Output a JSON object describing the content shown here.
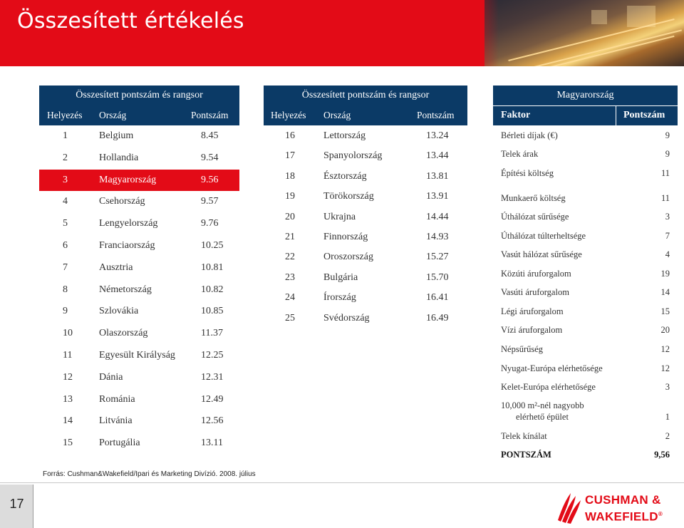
{
  "title": "Összesített értékelés",
  "left_table": {
    "header": "Összesített pontszám és rangsor",
    "col_rank": "Helyezés",
    "col_country": "Ország",
    "col_score": "Pontszám",
    "rows": [
      {
        "rank": "1",
        "country": "Belgium",
        "score": "8.45"
      },
      {
        "rank": "2",
        "country": "Hollandia",
        "score": "9.54"
      },
      {
        "rank": "3",
        "country": "Magyarország",
        "score": "9.56"
      },
      {
        "rank": "4",
        "country": "Csehország",
        "score": "9.57"
      },
      {
        "rank": "5",
        "country": "Lengyelország",
        "score": "9.76"
      },
      {
        "rank": "6",
        "country": "Franciaország",
        "score": "10.25"
      },
      {
        "rank": "7",
        "country": "Ausztria",
        "score": "10.81"
      },
      {
        "rank": "8",
        "country": "Németország",
        "score": "10.82"
      },
      {
        "rank": "9",
        "country": "Szlovákia",
        "score": "10.85"
      },
      {
        "rank": "10",
        "country": "Olaszország",
        "score": "11.37"
      },
      {
        "rank": "11",
        "country": "Egyesült Királyság",
        "score": "12.25"
      },
      {
        "rank": "12",
        "country": "Dánia",
        "score": "12.31"
      },
      {
        "rank": "13",
        "country": "Románia",
        "score": "12.49"
      },
      {
        "rank": "14",
        "country": "Litvánia",
        "score": "12.56"
      },
      {
        "rank": "15",
        "country": "Portugália",
        "score": "13.11"
      }
    ],
    "highlight_color": "#e30b17"
  },
  "middle_table": {
    "header": "Összesített pontszám és rangsor",
    "col_rank": "Helyezés",
    "col_country": "Ország",
    "col_score": "Pontszám",
    "rows": [
      {
        "rank": "16",
        "country": "Lettország",
        "score": "13.24"
      },
      {
        "rank": "17",
        "country": "Spanyolország",
        "score": "13.44"
      },
      {
        "rank": "18",
        "country": "Észtország",
        "score": "13.81"
      },
      {
        "rank": "19",
        "country": "Törökország",
        "score": "13.91"
      },
      {
        "rank": "20",
        "country": "Ukrajna",
        "score": "14.44"
      },
      {
        "rank": "21",
        "country": "Finnország",
        "score": "14.93"
      },
      {
        "rank": "22",
        "country": "Oroszország",
        "score": "15.27"
      },
      {
        "rank": "23",
        "country": "Bulgária",
        "score": "15.70"
      },
      {
        "rank": "24",
        "country": "Írország",
        "score": "16.41"
      },
      {
        "rank": "25",
        "country": "Svédország",
        "score": "16.49"
      }
    ]
  },
  "right_table": {
    "header": "Magyarország",
    "col_factor": "Faktor",
    "col_score": "Pontszám",
    "rows": [
      {
        "factor": "Bérleti díjak (€)",
        "score": "9"
      },
      {
        "factor": "Telek árak",
        "score": "9"
      },
      {
        "factor": "Építési költség",
        "score": "11"
      },
      {
        "factor": "Munkaerő költség",
        "score": "11"
      },
      {
        "factor": "Úthálózat sűrűsége",
        "score": "3"
      },
      {
        "factor": "Úthálózat túlterheltsége",
        "score": "7"
      },
      {
        "factor": "Vasút hálózat sűrűsége",
        "score": "4"
      },
      {
        "factor": "Közúti áruforgalom",
        "score": "19"
      },
      {
        "factor": "Vasúti áruforgalom",
        "score": "14"
      },
      {
        "factor": "Légi áruforgalom",
        "score": "15"
      },
      {
        "factor": "Vízi áruforgalom",
        "score": "20"
      },
      {
        "factor": "Népsűrűség",
        "score": "12"
      },
      {
        "factor": "Nyugat-Európa elérhetősége",
        "score": "12"
      },
      {
        "factor": "Kelet-Európa elérhetősége",
        "score": "3"
      },
      {
        "factor": "10,000 m²-nél nagyobb",
        "factor2": "elérhető épület",
        "score": "1"
      },
      {
        "factor": "Telek kínálat",
        "score": "2"
      },
      {
        "factor": "PONTSZÁM",
        "score": "9,56"
      }
    ]
  },
  "source": "Forrás: Cushman&Wakefield/Ipari és Marketing Divízió. 2008. július",
  "page_number": "17",
  "logo": {
    "line1": "CUSHMAN &",
    "line2": "WAKEFIELD",
    "mark": "®"
  },
  "colors": {
    "brand_red": "#e30b17",
    "navy": "#0b3a66"
  }
}
